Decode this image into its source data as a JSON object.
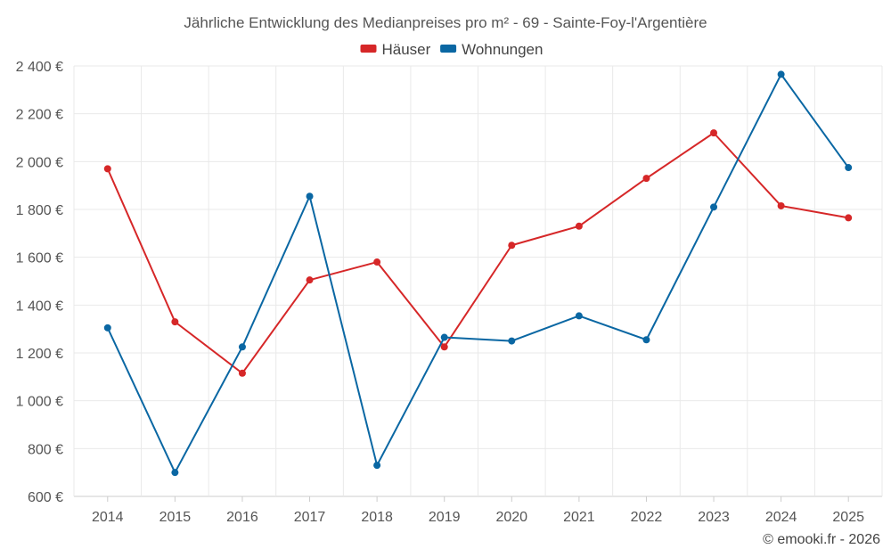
{
  "chart_data": {
    "type": "line",
    "title": "Jährliche Entwicklung des Medianpreises pro m² - 69 - Sainte-Foy-l'Argentière",
    "xlabel": "",
    "ylabel": "",
    "categories": [
      "2014",
      "2015",
      "2016",
      "2017",
      "2018",
      "2019",
      "2020",
      "2021",
      "2022",
      "2023",
      "2024",
      "2025"
    ],
    "ylim": [
      600,
      2400
    ],
    "yticks": [
      600,
      800,
      1000,
      1200,
      1400,
      1600,
      1800,
      2000,
      2200,
      2400
    ],
    "ytick_labels": [
      "600 €",
      "800 €",
      "1 000 €",
      "1 200 €",
      "1 400 €",
      "1 600 €",
      "1 800 €",
      "2 000 €",
      "2 200 €",
      "2 400 €"
    ],
    "grid": true,
    "legend_position": "top-center",
    "series": [
      {
        "name": "Häuser",
        "color": "#d62728",
        "values": [
          1970,
          1330,
          1115,
          1505,
          1580,
          1225,
          1650,
          1730,
          1930,
          2120,
          1815,
          1765
        ]
      },
      {
        "name": "Wohnungen",
        "color": "#0a67a3",
        "values": [
          1305,
          700,
          1225,
          1855,
          730,
          1265,
          1250,
          1355,
          1255,
          1810,
          2365,
          1975
        ]
      }
    ]
  },
  "footer": {
    "copyright": "© emooki.fr - 2026"
  }
}
